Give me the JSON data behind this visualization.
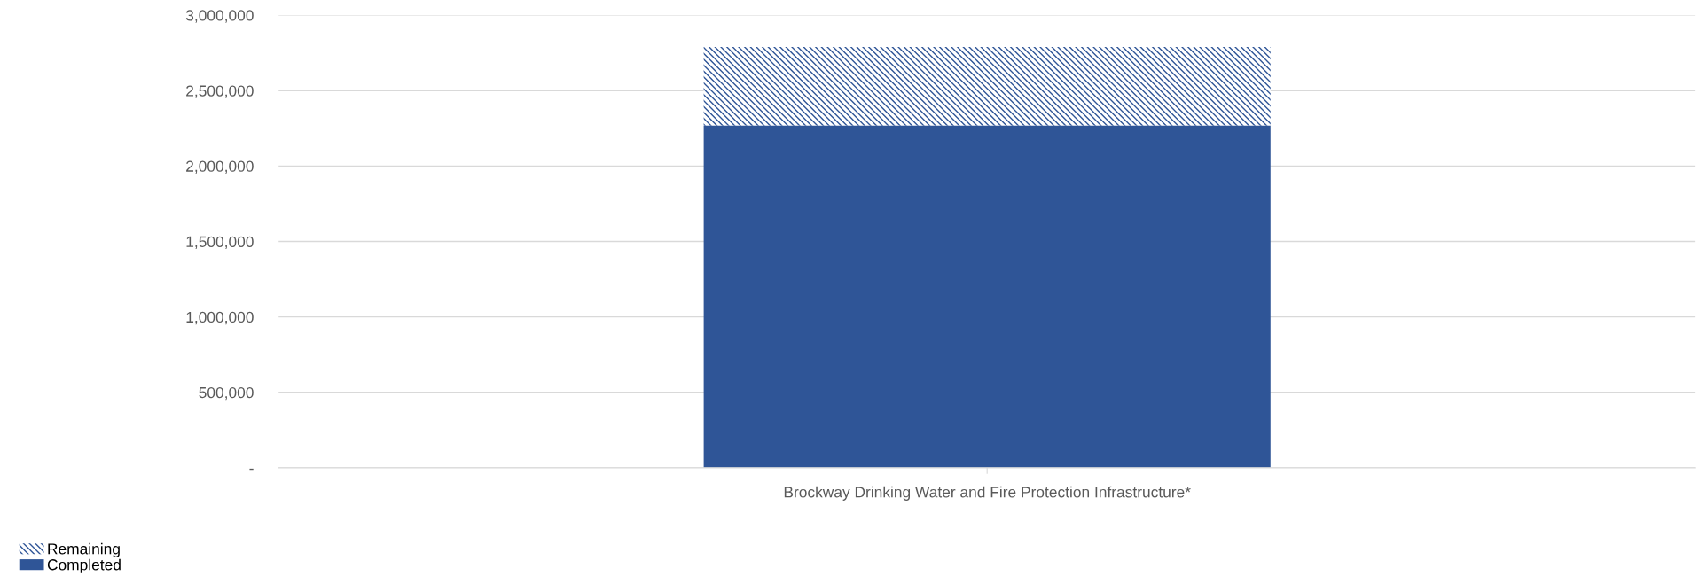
{
  "chart_data": {
    "type": "bar",
    "stacked": true,
    "categories": [
      "Brockway Drinking Water and Fire Protection Infrastructure*"
    ],
    "series": [
      {
        "name": "Completed",
        "color": "#2f5597",
        "values": [
          2270000
        ]
      },
      {
        "name": "Remaining",
        "color": "#2f5597",
        "values": [
          520000
        ]
      }
    ],
    "ylim": [
      0,
      3000000
    ],
    "yticks": [
      {
        "value": 0,
        "label": "-"
      },
      {
        "value": 500000,
        "label": "500,000"
      },
      {
        "value": 1000000,
        "label": "1,000,000"
      },
      {
        "value": 1500000,
        "label": "1,500,000"
      },
      {
        "value": 2000000,
        "label": "2,000,000"
      },
      {
        "value": 2500000,
        "label": "2,500,000"
      },
      {
        "value": 3000000,
        "label": "3,000,000"
      }
    ],
    "grid": "y",
    "legend": "bottom left"
  }
}
